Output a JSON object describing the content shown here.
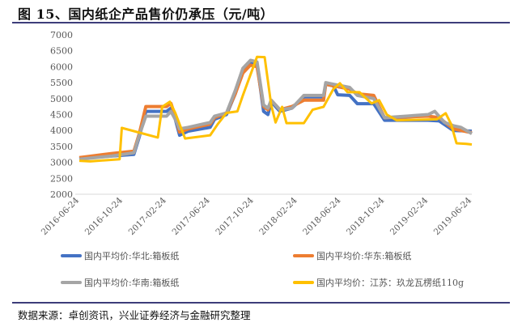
{
  "title": "图 15、国内纸企产品售价仍承压（元/吨）",
  "source": "数据来源：卓创资讯，兴业证券经济与金融研究整理",
  "chart_data": {
    "type": "line",
    "title": "国内纸企产品售价仍承压（元/吨）",
    "xlabel": "",
    "ylabel": "",
    "x_unit": "months since 2016-06-24",
    "ylim": [
      2000,
      7000
    ],
    "yticks": [
      "2000",
      "2500",
      "3000",
      "3500",
      "4000",
      "4500",
      "5000",
      "5500",
      "6000",
      "6500",
      "7000"
    ],
    "xticks": [
      {
        "m": 0,
        "label": "2016-06-24"
      },
      {
        "m": 4,
        "label": "2016-10-24"
      },
      {
        "m": 8,
        "label": "2017-02-24"
      },
      {
        "m": 12,
        "label": "2017-06-24"
      },
      {
        "m": 16,
        "label": "2017-10-24"
      },
      {
        "m": 20,
        "label": "2018-02-24"
      },
      {
        "m": 24,
        "label": "2018-06-24"
      },
      {
        "m": 28,
        "label": "2018-10-24"
      },
      {
        "m": 32,
        "label": "2019-02-24"
      },
      {
        "m": 36,
        "label": "2019-06-24"
      }
    ],
    "grid": "horizontal",
    "legend_position": "bottom",
    "series": [
      {
        "name": "国内平均价:华北:箱板纸",
        "color": "#4472c4",
        "points": [
          [
            0,
            3120
          ],
          [
            3,
            3200
          ],
          [
            5,
            3250
          ],
          [
            5.5,
            3800
          ],
          [
            6.1,
            4600
          ],
          [
            8,
            4600
          ],
          [
            8.4,
            4700
          ],
          [
            8.8,
            4350
          ],
          [
            9.2,
            3850
          ],
          [
            10,
            3980
          ],
          [
            12,
            4100
          ],
          [
            12.4,
            4350
          ],
          [
            13.5,
            4500
          ],
          [
            14.3,
            5150
          ],
          [
            15,
            5900
          ],
          [
            15.7,
            6150
          ],
          [
            16.3,
            6100
          ],
          [
            16.9,
            4600
          ],
          [
            17.3,
            4500
          ],
          [
            17.6,
            4900
          ],
          [
            18.4,
            4600
          ],
          [
            19.5,
            4700
          ],
          [
            20.6,
            5050
          ],
          [
            22.4,
            5050
          ],
          [
            22.6,
            5450
          ],
          [
            23.3,
            5400
          ],
          [
            23.7,
            5120
          ],
          [
            24.8,
            5100
          ],
          [
            25.5,
            4840
          ],
          [
            27,
            4840
          ],
          [
            28,
            4320
          ],
          [
            32,
            4320
          ],
          [
            33,
            4300
          ],
          [
            34.3,
            4000
          ],
          [
            36,
            3980
          ]
        ]
      },
      {
        "name": "国内平均价:华东:箱板纸",
        "color": "#ed7d31",
        "points": [
          [
            0,
            3150
          ],
          [
            3,
            3280
          ],
          [
            5,
            3350
          ],
          [
            5.5,
            3900
          ],
          [
            6.1,
            4750
          ],
          [
            8,
            4750
          ],
          [
            8.4,
            4850
          ],
          [
            8.8,
            4450
          ],
          [
            9.2,
            3950
          ],
          [
            10,
            4050
          ],
          [
            12,
            4200
          ],
          [
            12.4,
            4400
          ],
          [
            13.5,
            4550
          ],
          [
            14.3,
            5150
          ],
          [
            15,
            5800
          ],
          [
            15.7,
            6050
          ],
          [
            16.3,
            6000
          ],
          [
            16.9,
            4750
          ],
          [
            17.3,
            4650
          ],
          [
            17.6,
            4950
          ],
          [
            18.4,
            4650
          ],
          [
            19.5,
            4750
          ],
          [
            20.6,
            4950
          ],
          [
            22.4,
            4950
          ],
          [
            22.6,
            5450
          ],
          [
            23.3,
            5400
          ],
          [
            24.8,
            5300
          ],
          [
            25.5,
            5150
          ],
          [
            27,
            5100
          ],
          [
            28,
            4400
          ],
          [
            32,
            4450
          ],
          [
            33,
            4400
          ],
          [
            34.3,
            4050
          ],
          [
            36,
            3930
          ]
        ]
      },
      {
        "name": "国内平均价:华南:箱板纸",
        "color": "#a5a5a5",
        "points": [
          [
            0,
            3100
          ],
          [
            3,
            3200
          ],
          [
            5,
            3300
          ],
          [
            5.5,
            3850
          ],
          [
            6.1,
            4450
          ],
          [
            8,
            4450
          ],
          [
            8.4,
            4600
          ],
          [
            8.8,
            4350
          ],
          [
            9.2,
            4050
          ],
          [
            10,
            4100
          ],
          [
            12,
            4250
          ],
          [
            12.4,
            4450
          ],
          [
            13.5,
            4550
          ],
          [
            14.3,
            5250
          ],
          [
            15,
            5950
          ],
          [
            15.7,
            6200
          ],
          [
            16.3,
            6150
          ],
          [
            16.9,
            4800
          ],
          [
            17.3,
            4700
          ],
          [
            17.6,
            4950
          ],
          [
            18.4,
            4650
          ],
          [
            19.5,
            4700
          ],
          [
            20.6,
            5100
          ],
          [
            22.4,
            5100
          ],
          [
            22.6,
            5500
          ],
          [
            23.3,
            5450
          ],
          [
            24.8,
            5350
          ],
          [
            25.5,
            5100
          ],
          [
            27,
            5000
          ],
          [
            28,
            4400
          ],
          [
            32,
            4500
          ],
          [
            32.6,
            4600
          ],
          [
            33.5,
            4250
          ],
          [
            34.3,
            4150
          ],
          [
            35,
            4100
          ],
          [
            36,
            3900
          ]
        ]
      },
      {
        "name": "国内平均价：江苏：玖龙瓦楞纸110g",
        "color": "#ffc000",
        "points": [
          [
            0,
            3050
          ],
          [
            1,
            3030
          ],
          [
            3.7,
            3100
          ],
          [
            3.9,
            4080
          ],
          [
            7.2,
            3780
          ],
          [
            7.6,
            4740
          ],
          [
            8.3,
            4900
          ],
          [
            8.8,
            4550
          ],
          [
            9.7,
            3750
          ],
          [
            12,
            3850
          ],
          [
            12.7,
            4200
          ],
          [
            13.5,
            4550
          ],
          [
            14.5,
            4600
          ],
          [
            15,
            5100
          ],
          [
            16.3,
            6310
          ],
          [
            17,
            6300
          ],
          [
            17.6,
            4800
          ],
          [
            18,
            4250
          ],
          [
            18.6,
            4740
          ],
          [
            19,
            4230
          ],
          [
            20.6,
            4230
          ],
          [
            21.4,
            4650
          ],
          [
            22.4,
            4740
          ],
          [
            23.3,
            5300
          ],
          [
            23.9,
            5480
          ],
          [
            24.6,
            5200
          ],
          [
            25.7,
            5200
          ],
          [
            26.8,
            4850
          ],
          [
            27.5,
            4950
          ],
          [
            28.2,
            4500
          ],
          [
            29.1,
            4320
          ],
          [
            32.8,
            4350
          ],
          [
            33.6,
            4540
          ],
          [
            34.1,
            4200
          ],
          [
            34.6,
            3600
          ],
          [
            35.5,
            3580
          ],
          [
            36,
            3560
          ]
        ]
      }
    ]
  }
}
